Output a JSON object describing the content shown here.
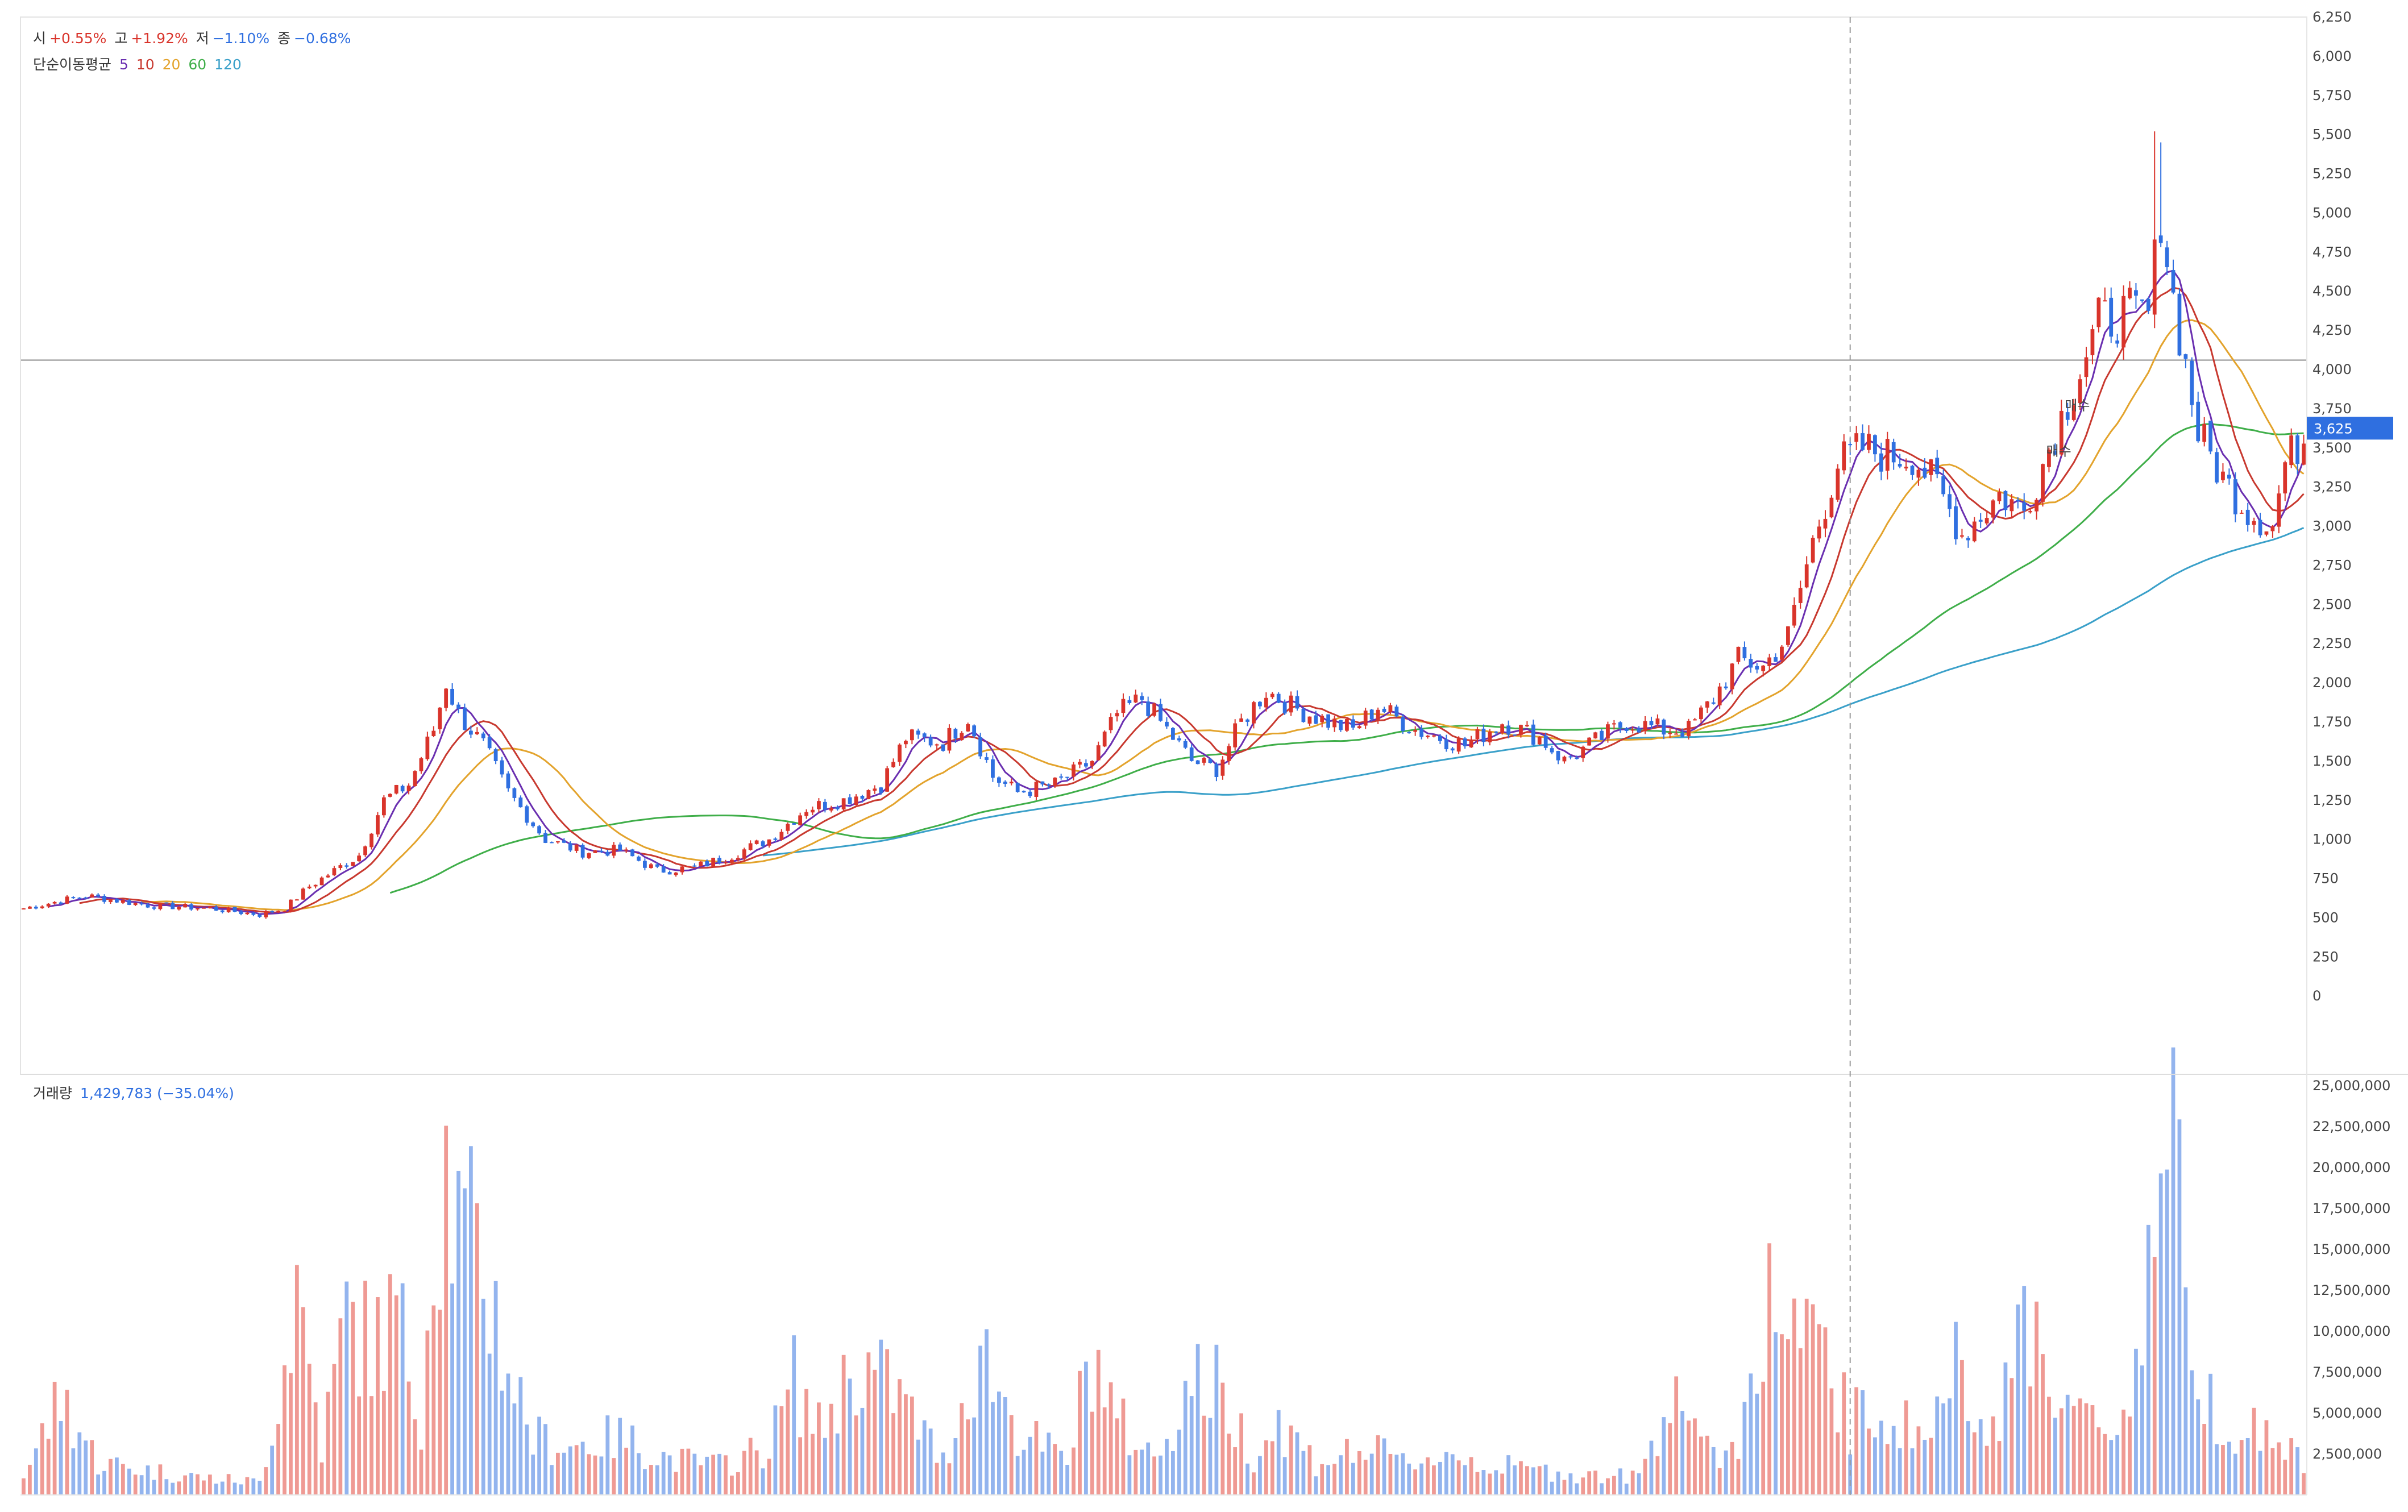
{
  "legend": {
    "open_label": "시",
    "open_value": "+0.55%",
    "high_label": "고",
    "high_value": "+1.92%",
    "low_label": "저",
    "low_value": "−1.10%",
    "close_label": "종",
    "close_value": "−0.68%",
    "ma_title": "단순이동평균",
    "ma_periods": [
      "5",
      "10",
      "20",
      "60",
      "120"
    ],
    "volume_label": "거래량",
    "volume_value": "1,429,783 (−35.04%)"
  },
  "colors": {
    "up": "#d9342b",
    "down": "#2f6fe0",
    "up_volume": "#ef9a94",
    "down_volume": "#93b4ee",
    "ma5": "#6a2fb0",
    "ma10": "#c8392f",
    "ma20": "#e3a32c",
    "ma60": "#3fae49",
    "ma120": "#3aa0c9",
    "current_price_badge": "#2f6fe0"
  },
  "chart_data": {
    "type": "candlestick",
    "price_axis": {
      "ylim": [
        -500,
        6250
      ],
      "ticks": [
        0,
        250,
        500,
        750,
        1000,
        1250,
        1500,
        1750,
        2000,
        2250,
        2500,
        2750,
        3000,
        3250,
        3500,
        3750,
        4000,
        4250,
        4500,
        4750,
        5000,
        5250,
        5500,
        5750,
        6000,
        6250
      ],
      "tick_labels": [
        "0",
        "250",
        "500",
        "750",
        "1,000",
        "1,250",
        "1,500",
        "1,750",
        "2,000",
        "2,250",
        "2,500",
        "2,750",
        "3,000",
        "3,250",
        "3,500",
        "3,750",
        "4,000",
        "4,250",
        "4,500",
        "4,750",
        "5,000",
        "5,250",
        "5,500",
        "5,750",
        "6,000",
        "6,250"
      ]
    },
    "volume_axis": {
      "ylim": [
        0,
        25000000
      ],
      "ticks": [
        2500000,
        5000000,
        7500000,
        10000000,
        12500000,
        15000000,
        17500000,
        20000000,
        22500000,
        25000000
      ],
      "tick_labels": [
        "2,500,000",
        "5,000,000",
        "7,500,000",
        "10,000,000",
        "12,500,000",
        "15,000,000",
        "17,500,000",
        "20,000,000",
        "22,500,000",
        "25,000,000"
      ]
    },
    "current_price": 3625,
    "current_price_label": "3,625",
    "horizontal_line_price": 4060,
    "annotations": [
      {
        "text": "매수",
        "bar": 328,
        "price": 3740
      },
      {
        "text": "매수",
        "bar": 325,
        "price": 3450
      }
    ],
    "crosshair_bar": 294,
    "bar_count": 368,
    "close_anchors": [
      [
        0,
        560
      ],
      [
        10,
        640
      ],
      [
        20,
        580
      ],
      [
        30,
        560
      ],
      [
        38,
        520
      ],
      [
        42,
        560
      ],
      [
        46,
        700
      ],
      [
        50,
        800
      ],
      [
        54,
        900
      ],
      [
        58,
        1250
      ],
      [
        62,
        1350
      ],
      [
        66,
        1700
      ],
      [
        68,
        2000
      ],
      [
        70,
        1800
      ],
      [
        74,
        1600
      ],
      [
        78,
        1300
      ],
      [
        84,
        1000
      ],
      [
        90,
        920
      ],
      [
        96,
        930
      ],
      [
        102,
        800
      ],
      [
        108,
        820
      ],
      [
        114,
        900
      ],
      [
        120,
        1000
      ],
      [
        126,
        1200
      ],
      [
        132,
        1250
      ],
      [
        138,
        1350
      ],
      [
        142,
        1650
      ],
      [
        148,
        1620
      ],
      [
        152,
        1780
      ],
      [
        156,
        1400
      ],
      [
        160,
        1300
      ],
      [
        166,
        1350
      ],
      [
        172,
        1500
      ],
      [
        176,
        1800
      ],
      [
        180,
        1900
      ],
      [
        184,
        1700
      ],
      [
        188,
        1500
      ],
      [
        192,
        1450
      ],
      [
        196,
        1750
      ],
      [
        200,
        1950
      ],
      [
        204,
        1850
      ],
      [
        210,
        1750
      ],
      [
        214,
        1700
      ],
      [
        218,
        1850
      ],
      [
        224,
        1700
      ],
      [
        232,
        1600
      ],
      [
        238,
        1750
      ],
      [
        244,
        1650
      ],
      [
        248,
        1500
      ],
      [
        252,
        1600
      ],
      [
        258,
        1750
      ],
      [
        264,
        1700
      ],
      [
        268,
        1700
      ],
      [
        272,
        1900
      ],
      [
        276,
        2150
      ],
      [
        280,
        2100
      ],
      [
        284,
        2300
      ],
      [
        288,
        2900
      ],
      [
        292,
        3400
      ],
      [
        296,
        3500
      ],
      [
        300,
        3450
      ],
      [
        304,
        3450
      ],
      [
        308,
        3250
      ],
      [
        312,
        2950
      ],
      [
        318,
        3200
      ],
      [
        322,
        3100
      ],
      [
        326,
        3500
      ],
      [
        330,
        3900
      ],
      [
        334,
        4300
      ],
      [
        338,
        4350
      ],
      [
        342,
        4350
      ],
      [
        344,
        5000
      ],
      [
        346,
        4450
      ],
      [
        350,
        3600
      ],
      [
        354,
        3300
      ],
      [
        358,
        3100
      ],
      [
        362,
        3000
      ],
      [
        364,
        3400
      ],
      [
        368,
        3625
      ]
    ],
    "volume_anchors": [
      [
        0,
        1200000
      ],
      [
        6,
        6000000
      ],
      [
        12,
        2000000
      ],
      [
        20,
        1500000
      ],
      [
        30,
        1000000
      ],
      [
        38,
        800000
      ],
      [
        42,
        8000000
      ],
      [
        44,
        13000000
      ],
      [
        48,
        3000000
      ],
      [
        52,
        11000000
      ],
      [
        56,
        9000000
      ],
      [
        60,
        11000000
      ],
      [
        64,
        5000000
      ],
      [
        66,
        17000000
      ],
      [
        68,
        20000000
      ],
      [
        70,
        16000000
      ],
      [
        74,
        14000000
      ],
      [
        78,
        8000000
      ],
      [
        82,
        3500000
      ],
      [
        88,
        3000000
      ],
      [
        96,
        3500000
      ],
      [
        104,
        2200000
      ],
      [
        112,
        1800000
      ],
      [
        120,
        3000000
      ],
      [
        124,
        7000000
      ],
      [
        128,
        4000000
      ],
      [
        134,
        8000000
      ],
      [
        140,
        6500000
      ],
      [
        148,
        2000000
      ],
      [
        154,
        9000000
      ],
      [
        160,
        4000000
      ],
      [
        168,
        2000000
      ],
      [
        172,
        9000000
      ],
      [
        176,
        4500000
      ],
      [
        182,
        2200000
      ],
      [
        188,
        7000000
      ],
      [
        192,
        6500000
      ],
      [
        198,
        2500000
      ],
      [
        202,
        4500000
      ],
      [
        208,
        2000000
      ],
      [
        216,
        2800000
      ],
      [
        222,
        2000000
      ],
      [
        230,
        2500000
      ],
      [
        236,
        1800000
      ],
      [
        244,
        1500000
      ],
      [
        252,
        1200000
      ],
      [
        260,
        1100000
      ],
      [
        266,
        7500000
      ],
      [
        270,
        2500000
      ],
      [
        276,
        3000000
      ],
      [
        280,
        12000000
      ],
      [
        284,
        10000000
      ],
      [
        290,
        8000000
      ],
      [
        294,
        4500000
      ],
      [
        300,
        5000000
      ],
      [
        306,
        3500000
      ],
      [
        312,
        8500000
      ],
      [
        318,
        3500000
      ],
      [
        322,
        12000000
      ],
      [
        326,
        8000000
      ],
      [
        330,
        5000000
      ],
      [
        336,
        3500000
      ],
      [
        340,
        8000000
      ],
      [
        342,
        15000000
      ],
      [
        344,
        21000000
      ],
      [
        346,
        20000000
      ],
      [
        350,
        8000000
      ],
      [
        354,
        4500000
      ],
      [
        358,
        4000000
      ],
      [
        362,
        3500000
      ],
      [
        364,
        3000000
      ],
      [
        368,
        1400000
      ]
    ]
  }
}
